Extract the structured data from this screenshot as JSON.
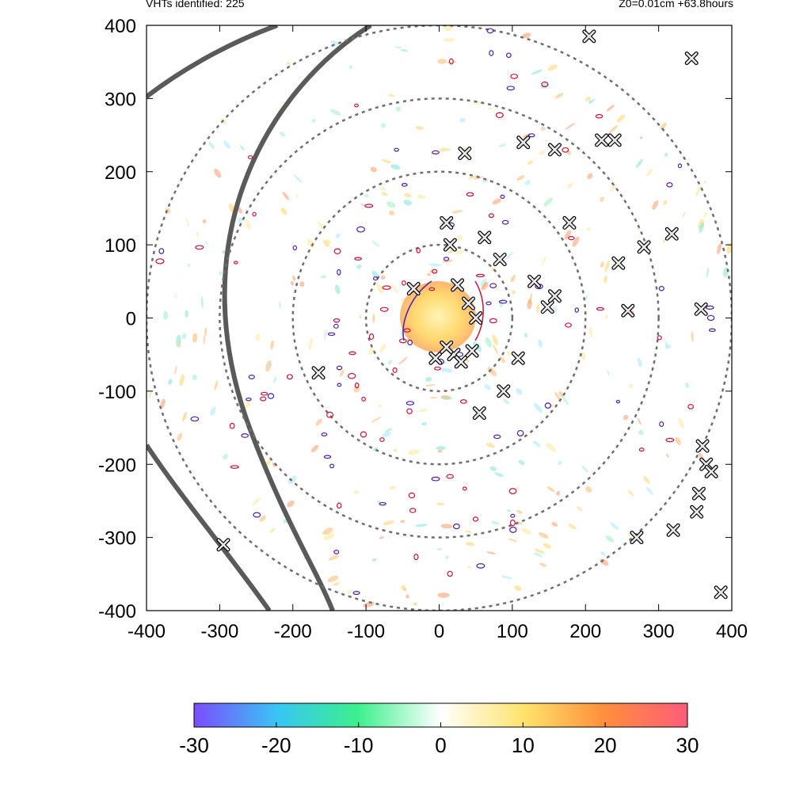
{
  "header": {
    "left": "VHTs identified: 225",
    "right": "Z0=0.01cm  +63.8hours"
  },
  "chart_data": {
    "type": "scatter",
    "title": "",
    "xlabel": "",
    "ylabel": "",
    "xlim": [
      -400,
      400
    ],
    "ylim": [
      -400,
      400
    ],
    "x_ticks": [
      -400,
      -300,
      -200,
      -100,
      0,
      100,
      200,
      300,
      400
    ],
    "y_ticks": [
      -400,
      -300,
      -200,
      -100,
      0,
      100,
      200,
      300,
      400
    ],
    "x_tick_labels": [
      "-400",
      "-300",
      "-200",
      "-100",
      "0",
      "100",
      "200",
      "300",
      "400"
    ],
    "y_tick_labels": [
      "-400",
      "-300",
      "-200",
      "-100",
      "0",
      "100",
      "200",
      "300",
      "400"
    ],
    "range_rings": [
      100,
      200,
      300,
      400
    ],
    "colorbar": {
      "min": -30,
      "max": 30,
      "ticks": [
        -30,
        -20,
        -10,
        0,
        10,
        20,
        30
      ],
      "tick_labels": [
        "-30",
        "-20",
        "-10",
        "0",
        "10",
        "20",
        "30"
      ],
      "colors": [
        "#7a4dff",
        "#38c6f4",
        "#3af08c",
        "#ffffff",
        "#ffe36b",
        "#ff8f3c",
        "#ff5c7a"
      ]
    },
    "series": [
      {
        "marker": "x",
        "x": [
          -35,
          25,
          15,
          62,
          83,
          130,
          178,
          148,
          158,
          258,
          358,
          318,
          280,
          245,
          35,
          115,
          158,
          240,
          222,
          205,
          345,
          108,
          88,
          55,
          10,
          -165,
          -295,
          360,
          365,
          372,
          355,
          352,
          385,
          320,
          270,
          20,
          30,
          45,
          40,
          50,
          -5,
          10
        ],
        "y": [
          40,
          45,
          100,
          110,
          80,
          50,
          130,
          15,
          30,
          10,
          12,
          115,
          97,
          75,
          225,
          240,
          230,
          243,
          243,
          385,
          355,
          -55,
          -100,
          -130,
          130,
          -75,
          -310,
          -175,
          -200,
          -210,
          -240,
          -265,
          -375,
          -290,
          -300,
          -50,
          -60,
          -45,
          20,
          0,
          -55,
          -40
        ]
      }
    ]
  }
}
